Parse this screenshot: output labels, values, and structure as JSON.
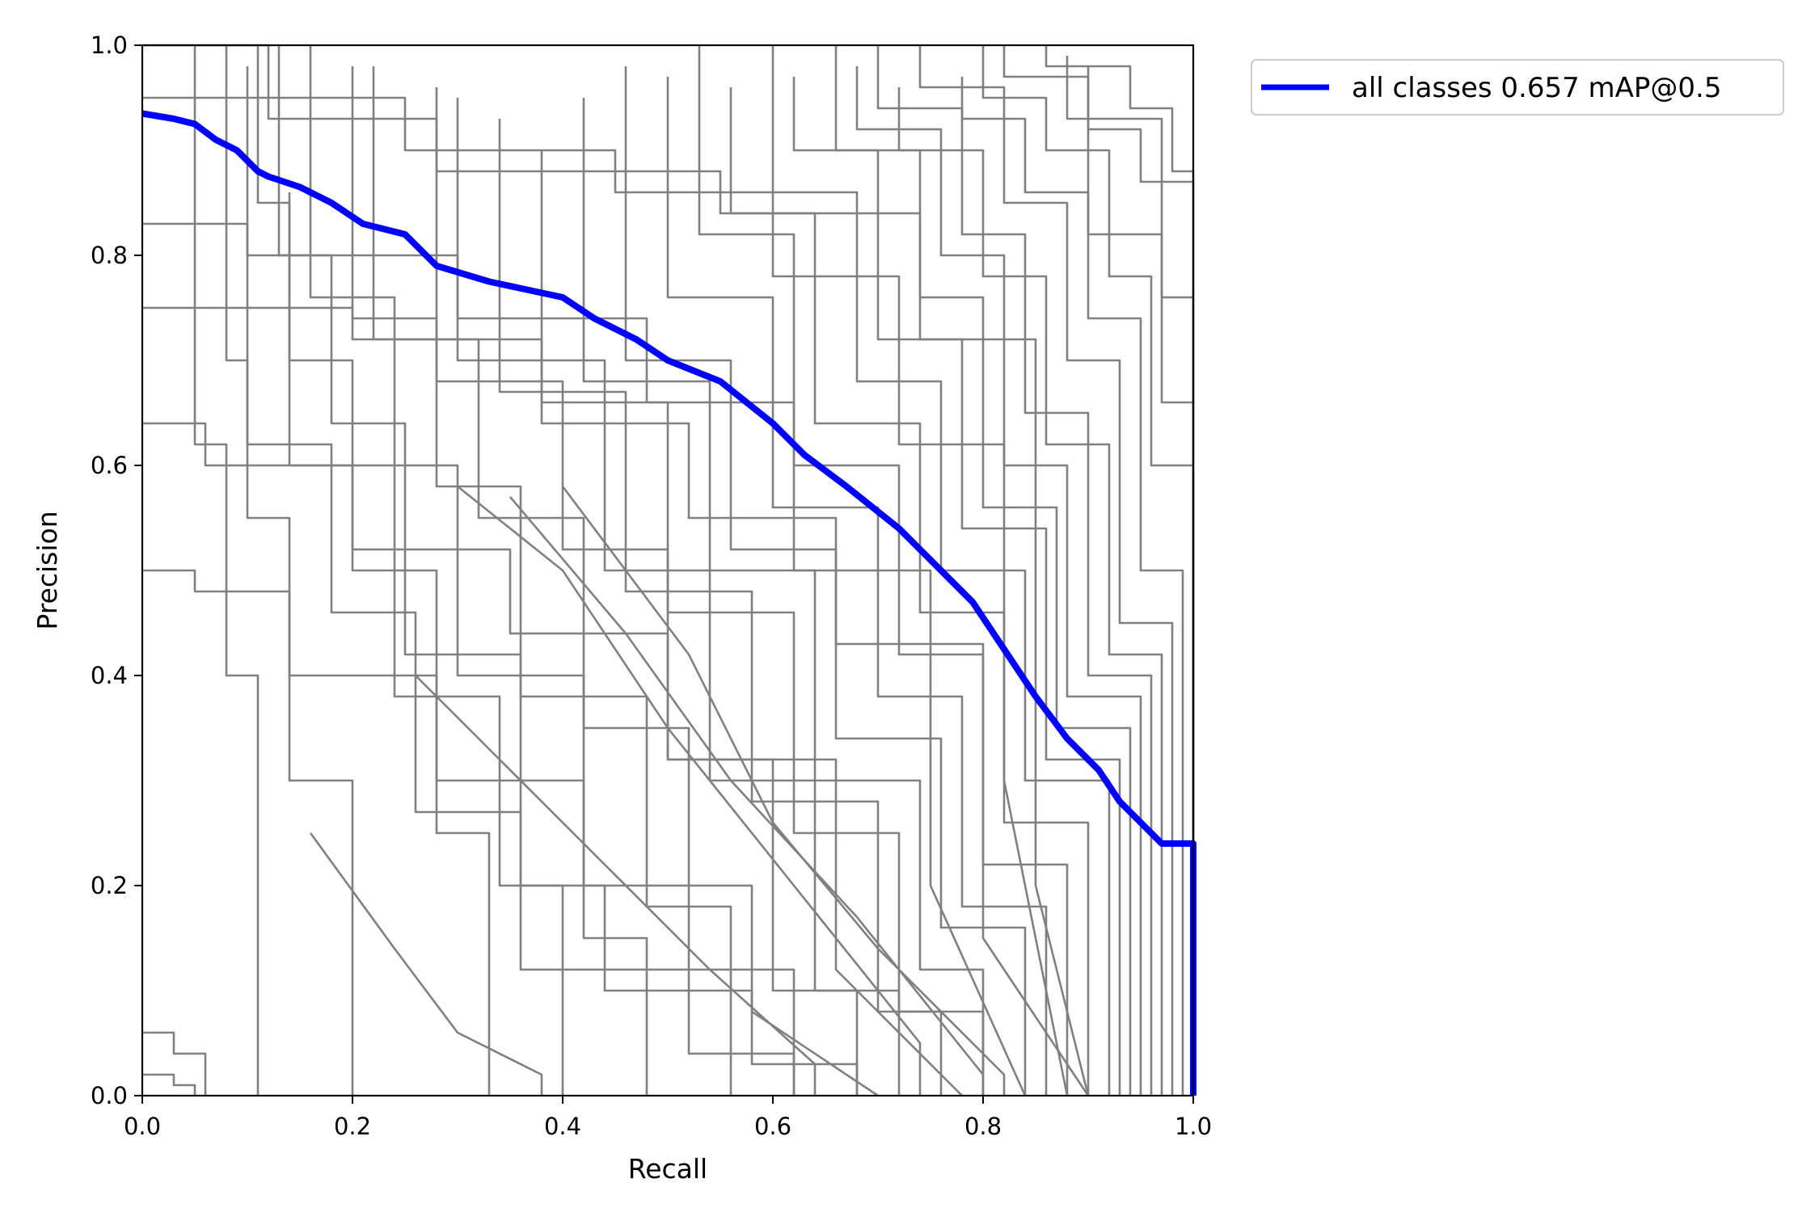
{
  "chart_data": {
    "type": "line",
    "title": "",
    "xlabel": "Recall",
    "ylabel": "Precision",
    "xlim": [
      0,
      1
    ],
    "ylim": [
      0,
      1
    ],
    "x_ticks": [
      "0.0",
      "0.2",
      "0.4",
      "0.6",
      "0.8",
      "1.0"
    ],
    "y_ticks": [
      "0.0",
      "0.2",
      "0.4",
      "0.6",
      "0.8",
      "1.0"
    ],
    "grid": false,
    "legend": {
      "placement": "outside-upper-right",
      "entries": [
        {
          "label": "all classes 0.657 mAP@0.5",
          "color": "#0000ff"
        }
      ]
    },
    "series": [
      {
        "name": "all classes 0.657 mAP@0.5",
        "color": "#0000ff",
        "emphasis": true,
        "x": [
          0.0,
          0.03,
          0.05,
          0.07,
          0.09,
          0.11,
          0.12,
          0.15,
          0.18,
          0.21,
          0.25,
          0.28,
          0.33,
          0.4,
          0.43,
          0.47,
          0.5,
          0.55,
          0.6,
          0.63,
          0.67,
          0.72,
          0.76,
          0.79,
          0.81,
          0.83,
          0.85,
          0.88,
          0.91,
          0.93,
          0.95,
          0.97,
          0.99,
          1.0,
          1.0
        ],
        "y": [
          0.935,
          0.93,
          0.925,
          0.91,
          0.9,
          0.88,
          0.875,
          0.865,
          0.85,
          0.83,
          0.82,
          0.79,
          0.775,
          0.76,
          0.74,
          0.72,
          0.7,
          0.68,
          0.64,
          0.61,
          0.58,
          0.54,
          0.5,
          0.47,
          0.44,
          0.41,
          0.38,
          0.34,
          0.31,
          0.28,
          0.26,
          0.24,
          0.24,
          0.24,
          0.0
        ]
      },
      {
        "color": "#808080",
        "x": [
          0.0,
          0.12,
          0.12,
          0.28,
          0.28,
          0.55,
          0.55,
          0.74,
          0.74,
          0.85,
          0.85,
          0.9
        ],
        "y": [
          1.0,
          1.0,
          0.93,
          0.93,
          0.88,
          0.88,
          0.84,
          0.84,
          0.72,
          0.72,
          0.2,
          0.0
        ]
      },
      {
        "color": "#808080",
        "x": [
          0.0,
          0.25,
          0.25,
          0.45,
          0.45,
          0.6,
          0.6,
          0.72,
          0.72,
          0.82,
          0.82,
          0.88
        ],
        "y": [
          0.95,
          0.95,
          0.9,
          0.9,
          0.86,
          0.86,
          0.78,
          0.78,
          0.62,
          0.62,
          0.3,
          0.0
        ]
      },
      {
        "color": "#808080",
        "x": [
          0.0,
          0.1,
          0.1,
          0.3,
          0.3,
          0.48,
          0.48,
          0.62,
          0.62,
          0.75,
          0.75,
          0.84
        ],
        "y": [
          0.83,
          0.83,
          0.8,
          0.8,
          0.74,
          0.74,
          0.66,
          0.66,
          0.5,
          0.5,
          0.2,
          0.0
        ]
      },
      {
        "color": "#808080",
        "x": [
          0.0,
          0.2,
          0.2,
          0.38,
          0.38,
          0.52,
          0.52,
          0.66,
          0.66,
          0.8,
          0.8,
          0.9
        ],
        "y": [
          0.75,
          0.75,
          0.72,
          0.72,
          0.64,
          0.64,
          0.55,
          0.55,
          0.43,
          0.43,
          0.15,
          0.0
        ]
      },
      {
        "color": "#808080",
        "x": [
          0.0,
          0.06,
          0.06,
          0.2,
          0.2,
          0.35,
          0.35,
          0.5,
          0.5,
          0.66,
          0.66,
          0.78
        ],
        "y": [
          0.64,
          0.64,
          0.6,
          0.6,
          0.52,
          0.52,
          0.44,
          0.44,
          0.32,
          0.32,
          0.12,
          0.0
        ]
      },
      {
        "color": "#808080",
        "x": [
          0.0,
          0.05,
          0.05,
          0.14,
          0.14,
          0.28,
          0.28,
          0.42,
          0.42,
          0.58,
          0.58,
          0.7
        ],
        "y": [
          0.5,
          0.5,
          0.48,
          0.48,
          0.4,
          0.4,
          0.3,
          0.3,
          0.2,
          0.2,
          0.08,
          0.0
        ]
      },
      {
        "color": "#808080",
        "x": [
          0.0,
          0.03,
          0.03,
          0.06,
          0.06
        ],
        "y": [
          0.06,
          0.06,
          0.04,
          0.04,
          0.0
        ]
      },
      {
        "color": "#808080",
        "x": [
          0.0,
          0.03,
          0.03,
          0.05,
          0.05
        ],
        "y": [
          0.02,
          0.02,
          0.01,
          0.01,
          0.0
        ]
      },
      {
        "color": "#808080",
        "x": [
          0.05,
          0.05,
          0.08,
          0.08,
          0.11,
          0.11
        ],
        "y": [
          1.0,
          0.62,
          0.62,
          0.4,
          0.4,
          0.0
        ]
      },
      {
        "color": "#808080",
        "x": [
          0.08,
          0.08,
          0.1,
          0.1,
          0.14,
          0.14,
          0.2,
          0.2
        ],
        "y": [
          1.0,
          0.7,
          0.7,
          0.55,
          0.55,
          0.3,
          0.3,
          0.0
        ]
      },
      {
        "color": "#808080",
        "x": [
          0.11,
          0.11,
          0.14,
          0.14,
          0.2,
          0.2,
          0.28,
          0.28,
          0.33,
          0.33
        ],
        "y": [
          1.0,
          0.85,
          0.85,
          0.7,
          0.7,
          0.5,
          0.5,
          0.25,
          0.25,
          0.0
        ]
      },
      {
        "color": "#808080",
        "x": [
          0.13,
          0.13,
          0.18,
          0.18,
          0.25,
          0.25,
          0.36,
          0.36,
          0.4,
          0.4
        ],
        "y": [
          1.0,
          0.8,
          0.8,
          0.64,
          0.64,
          0.42,
          0.42,
          0.2,
          0.2,
          0.0
        ]
      },
      {
        "color": "#808080",
        "x": [
          0.16,
          0.16,
          0.24,
          0.24,
          0.3,
          0.3,
          0.42,
          0.42,
          0.48,
          0.48
        ],
        "y": [
          1.0,
          0.76,
          0.76,
          0.6,
          0.6,
          0.4,
          0.4,
          0.15,
          0.15,
          0.0
        ]
      },
      {
        "color": "#808080",
        "x": [
          0.2,
          0.2,
          0.28,
          0.28,
          0.36,
          0.36,
          0.48,
          0.48,
          0.56,
          0.56
        ],
        "y": [
          0.98,
          0.74,
          0.74,
          0.58,
          0.58,
          0.38,
          0.38,
          0.18,
          0.18,
          0.0
        ]
      },
      {
        "color": "#808080",
        "x": [
          0.22,
          0.22,
          0.32,
          0.32,
          0.42,
          0.42,
          0.52,
          0.52,
          0.62,
          0.62
        ],
        "y": [
          0.98,
          0.72,
          0.72,
          0.55,
          0.55,
          0.35,
          0.35,
          0.12,
          0.12,
          0.0
        ]
      },
      {
        "color": "#808080",
        "x": [
          0.28,
          0.28,
          0.4,
          0.4,
          0.5,
          0.5,
          0.6,
          0.6,
          0.68,
          0.68
        ],
        "y": [
          0.96,
          0.68,
          0.68,
          0.52,
          0.52,
          0.32,
          0.32,
          0.1,
          0.1,
          0.0
        ]
      },
      {
        "color": "#808080",
        "x": [
          0.3,
          0.3,
          0.44,
          0.44,
          0.54,
          0.54,
          0.64,
          0.64,
          0.72,
          0.72
        ],
        "y": [
          0.95,
          0.7,
          0.7,
          0.5,
          0.5,
          0.3,
          0.3,
          0.1,
          0.1,
          0.0
        ]
      },
      {
        "color": "#808080",
        "x": [
          0.34,
          0.34,
          0.46,
          0.46,
          0.58,
          0.58,
          0.7,
          0.7,
          0.76,
          0.76
        ],
        "y": [
          0.93,
          0.67,
          0.67,
          0.48,
          0.48,
          0.28,
          0.28,
          0.08,
          0.08,
          0.0
        ]
      },
      {
        "color": "#808080",
        "x": [
          0.38,
          0.38,
          0.5,
          0.5,
          0.62,
          0.62,
          0.72,
          0.72,
          0.8,
          0.8
        ],
        "y": [
          0.9,
          0.66,
          0.66,
          0.46,
          0.46,
          0.25,
          0.25,
          0.08,
          0.08,
          0.0
        ]
      },
      {
        "color": "#808080",
        "x": [
          0.42,
          0.42,
          0.54,
          0.54,
          0.64,
          0.64,
          0.74,
          0.74,
          0.8,
          0.8
        ],
        "y": [
          0.95,
          0.68,
          0.68,
          0.5,
          0.5,
          0.3,
          0.3,
          0.12,
          0.12,
          0.0
        ]
      },
      {
        "color": "#808080",
        "x": [
          0.46,
          0.46,
          0.56,
          0.56,
          0.66,
          0.66,
          0.76,
          0.76,
          0.84,
          0.84
        ],
        "y": [
          0.98,
          0.7,
          0.7,
          0.52,
          0.52,
          0.34,
          0.34,
          0.16,
          0.16,
          0.0
        ]
      },
      {
        "color": "#808080",
        "x": [
          0.5,
          0.5,
          0.6,
          0.6,
          0.7,
          0.7,
          0.78,
          0.78,
          0.86,
          0.86
        ],
        "y": [
          0.97,
          0.76,
          0.76,
          0.56,
          0.56,
          0.38,
          0.38,
          0.18,
          0.18,
          0.0
        ]
      },
      {
        "color": "#808080",
        "x": [
          0.53,
          0.53,
          0.62,
          0.62,
          0.72,
          0.72,
          0.8,
          0.8,
          0.88,
          0.88
        ],
        "y": [
          1.0,
          0.82,
          0.82,
          0.6,
          0.6,
          0.42,
          0.42,
          0.22,
          0.22,
          0.0
        ]
      },
      {
        "color": "#808080",
        "x": [
          0.56,
          0.56,
          0.64,
          0.64,
          0.74,
          0.74,
          0.82,
          0.82,
          0.9,
          0.9
        ],
        "y": [
          0.96,
          0.84,
          0.84,
          0.64,
          0.64,
          0.46,
          0.46,
          0.26,
          0.26,
          0.0
        ]
      },
      {
        "color": "#808080",
        "x": [
          0.6,
          0.6,
          0.68,
          0.68,
          0.76,
          0.76,
          0.84,
          0.84,
          0.92,
          0.92
        ],
        "y": [
          1.0,
          0.86,
          0.86,
          0.68,
          0.68,
          0.5,
          0.5,
          0.3,
          0.3,
          0.0
        ]
      },
      {
        "color": "#808080",
        "x": [
          0.62,
          0.62,
          0.7,
          0.7,
          0.78,
          0.78,
          0.86,
          0.86,
          0.93,
          0.93
        ],
        "y": [
          0.97,
          0.9,
          0.9,
          0.72,
          0.72,
          0.54,
          0.54,
          0.32,
          0.32,
          0.0
        ]
      },
      {
        "color": "#808080",
        "x": [
          0.66,
          0.66,
          0.74,
          0.74,
          0.8,
          0.8,
          0.87,
          0.87,
          0.94,
          0.94
        ],
        "y": [
          1.0,
          0.9,
          0.9,
          0.76,
          0.76,
          0.56,
          0.56,
          0.35,
          0.35,
          0.0
        ]
      },
      {
        "color": "#808080",
        "x": [
          0.68,
          0.68,
          0.76,
          0.76,
          0.82,
          0.82,
          0.88,
          0.88,
          0.95,
          0.95
        ],
        "y": [
          0.98,
          0.92,
          0.92,
          0.8,
          0.8,
          0.6,
          0.6,
          0.38,
          0.38,
          0.0
        ]
      },
      {
        "color": "#808080",
        "x": [
          0.7,
          0.7,
          0.78,
          0.78,
          0.84,
          0.84,
          0.9,
          0.9,
          0.96,
          0.96
        ],
        "y": [
          1.0,
          0.94,
          0.94,
          0.82,
          0.82,
          0.65,
          0.65,
          0.4,
          0.4,
          0.0
        ]
      },
      {
        "color": "#808080",
        "x": [
          0.72,
          0.72,
          0.8,
          0.8,
          0.86,
          0.86,
          0.92,
          0.92,
          0.97,
          0.97
        ],
        "y": [
          0.96,
          0.9,
          0.9,
          0.78,
          0.78,
          0.62,
          0.62,
          0.42,
          0.42,
          0.0
        ]
      },
      {
        "color": "#808080",
        "x": [
          0.74,
          0.74,
          0.82,
          0.82,
          0.88,
          0.88,
          0.93,
          0.93,
          0.98,
          0.98
        ],
        "y": [
          1.0,
          0.96,
          0.96,
          0.85,
          0.85,
          0.7,
          0.7,
          0.45,
          0.45,
          0.0
        ]
      },
      {
        "color": "#808080",
        "x": [
          0.78,
          0.78,
          0.84,
          0.84,
          0.9,
          0.9,
          0.95,
          0.95,
          0.99,
          0.99
        ],
        "y": [
          0.97,
          0.93,
          0.93,
          0.86,
          0.86,
          0.74,
          0.74,
          0.5,
          0.5,
          0.0
        ]
      },
      {
        "color": "#808080",
        "x": [
          0.8,
          0.8,
          0.86,
          0.86,
          0.92,
          0.92,
          0.96,
          0.96,
          1.0,
          1.0
        ],
        "y": [
          1.0,
          0.95,
          0.95,
          0.9,
          0.9,
          0.78,
          0.78,
          0.6,
          0.6,
          0.0
        ]
      },
      {
        "color": "#808080",
        "x": [
          0.82,
          0.82,
          0.9,
          0.9,
          0.95,
          0.95,
          1.0,
          1.0
        ],
        "y": [
          1.0,
          0.97,
          0.97,
          0.92,
          0.92,
          0.87,
          0.87,
          0.0
        ]
      },
      {
        "color": "#808080",
        "x": [
          0.86,
          0.86,
          0.94,
          0.94,
          0.98,
          0.98,
          1.0,
          1.0
        ],
        "y": [
          1.0,
          0.98,
          0.98,
          0.94,
          0.94,
          0.88,
          0.88,
          0.0
        ]
      },
      {
        "color": "#808080",
        "x": [
          0.88,
          0.88,
          0.97,
          0.97,
          1.0,
          1.0
        ],
        "y": [
          0.99,
          0.93,
          0.93,
          0.76,
          0.76,
          0.0
        ]
      },
      {
        "color": "#808080",
        "x": [
          0.9,
          0.9,
          0.97,
          0.97,
          1.0,
          1.0
        ],
        "y": [
          0.98,
          0.82,
          0.82,
          0.66,
          0.66,
          0.0
        ]
      },
      {
        "color": "#808080",
        "x": [
          0.1,
          0.1,
          0.18,
          0.18,
          0.26,
          0.26,
          0.36,
          0.36,
          0.52,
          0.52,
          0.62,
          0.62
        ],
        "y": [
          0.98,
          0.62,
          0.62,
          0.46,
          0.46,
          0.27,
          0.27,
          0.12,
          0.12,
          0.04,
          0.04,
          0.0
        ]
      },
      {
        "color": "#808080",
        "x": [
          0.14,
          0.14,
          0.24,
          0.24,
          0.34,
          0.34,
          0.44,
          0.44,
          0.58,
          0.58,
          0.68,
          0.68
        ],
        "y": [
          0.86,
          0.6,
          0.6,
          0.38,
          0.38,
          0.2,
          0.2,
          0.1,
          0.1,
          0.03,
          0.03,
          0.0
        ]
      },
      {
        "color": "#808080",
        "x": [
          0.3,
          0.3,
          0.4,
          0.4,
          0.5,
          0.5,
          0.62,
          0.62,
          0.74,
          0.74
        ],
        "y": [
          0.58,
          0.58,
          0.5,
          0.5,
          0.35,
          0.35,
          0.2,
          0.2,
          0.05,
          0.0
        ]
      },
      {
        "color": "#808080",
        "x": [
          0.35,
          0.35,
          0.46,
          0.46,
          0.56,
          0.56,
          0.68,
          0.68,
          0.8,
          0.8
        ],
        "y": [
          0.57,
          0.57,
          0.44,
          0.44,
          0.3,
          0.3,
          0.17,
          0.17,
          0.02,
          0.0
        ]
      },
      {
        "color": "#808080",
        "x": [
          0.4,
          0.4,
          0.52,
          0.52,
          0.6,
          0.6,
          0.7,
          0.7,
          0.82,
          0.82
        ],
        "y": [
          0.58,
          0.58,
          0.42,
          0.42,
          0.26,
          0.26,
          0.14,
          0.14,
          0.02,
          0.0
        ]
      },
      {
        "color": "#808080",
        "x": [
          0.26,
          0.26,
          0.34,
          0.34,
          0.44,
          0.44,
          0.54,
          0.54,
          0.64,
          0.64
        ],
        "y": [
          0.4,
          0.4,
          0.32,
          0.32,
          0.22,
          0.22,
          0.12,
          0.12,
          0.03,
          0.0
        ]
      },
      {
        "color": "#808080",
        "x": [
          0.16,
          0.16,
          0.24,
          0.24,
          0.3,
          0.3,
          0.38,
          0.38
        ],
        "y": [
          0.25,
          0.25,
          0.14,
          0.14,
          0.06,
          0.06,
          0.02,
          0.0
        ]
      }
    ]
  }
}
